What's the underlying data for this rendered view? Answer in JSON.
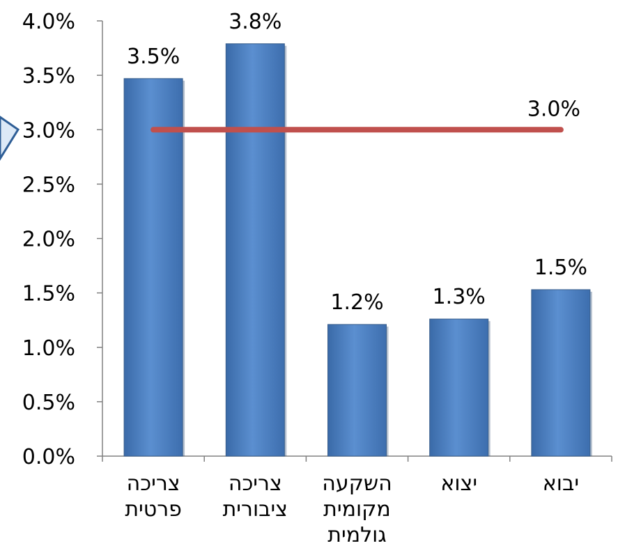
{
  "chart_data": {
    "type": "bar",
    "categories": [
      [
        "צריכה",
        "פרטית"
      ],
      [
        "צריכה",
        "ציבורית"
      ],
      [
        "השקעה",
        "מקומית",
        "גולמית"
      ],
      [
        "יצוא"
      ],
      [
        "יבוא"
      ]
    ],
    "values": [
      3.47,
      3.79,
      1.21,
      1.26,
      1.53
    ],
    "data_labels": [
      "3.5%",
      "3.8%",
      "1.2%",
      "1.3%",
      "1.5%"
    ],
    "reference_line": {
      "value": 3.0,
      "label": "3.0%",
      "color": "#C0504D"
    },
    "ylim": [
      0,
      4
    ],
    "yticks": [
      0,
      0.5,
      1,
      1.5,
      2,
      2.5,
      3,
      3.5,
      4
    ],
    "ytick_labels": [
      "0.0%",
      "0.5%",
      "1.0%",
      "1.5%",
      "2.0%",
      "2.5%",
      "3.0%",
      "3.5%",
      "4.0%"
    ],
    "bar_color": "#4F81BD",
    "grid": false,
    "legend": "none"
  }
}
